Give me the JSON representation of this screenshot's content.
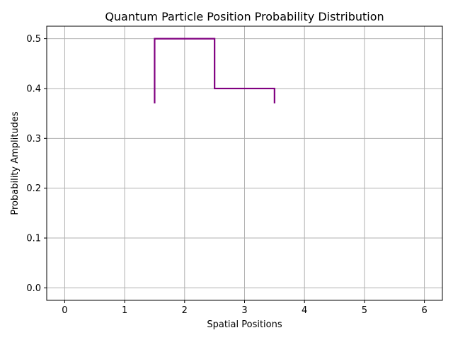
{
  "chart_data": {
    "type": "line",
    "title": "Quantum Particle Position Probability Distribution",
    "xlabel": "Spatial Positions",
    "ylabel": "Probability Amplitudes",
    "xlim": [
      -0.3,
      6.3
    ],
    "ylim": [
      -0.025,
      0.525
    ],
    "xticks": [
      0,
      1,
      2,
      3,
      4,
      5,
      6
    ],
    "yticks": [
      0.0,
      0.1,
      0.2,
      0.3,
      0.4,
      0.5
    ],
    "xtick_labels": [
      "0",
      "1",
      "2",
      "3",
      "4",
      "5",
      "6"
    ],
    "ytick_labels": [
      "0.0",
      "0.1",
      "0.2",
      "0.3",
      "0.4",
      "0.5"
    ],
    "grid": true,
    "series": [
      {
        "color": "#800080",
        "style": "step",
        "x": [
          1.5,
          1.5,
          2.5,
          2.5,
          3.5,
          3.5
        ],
        "y": [
          0.37,
          0.5,
          0.5,
          0.4,
          0.4,
          0.37
        ]
      }
    ]
  }
}
